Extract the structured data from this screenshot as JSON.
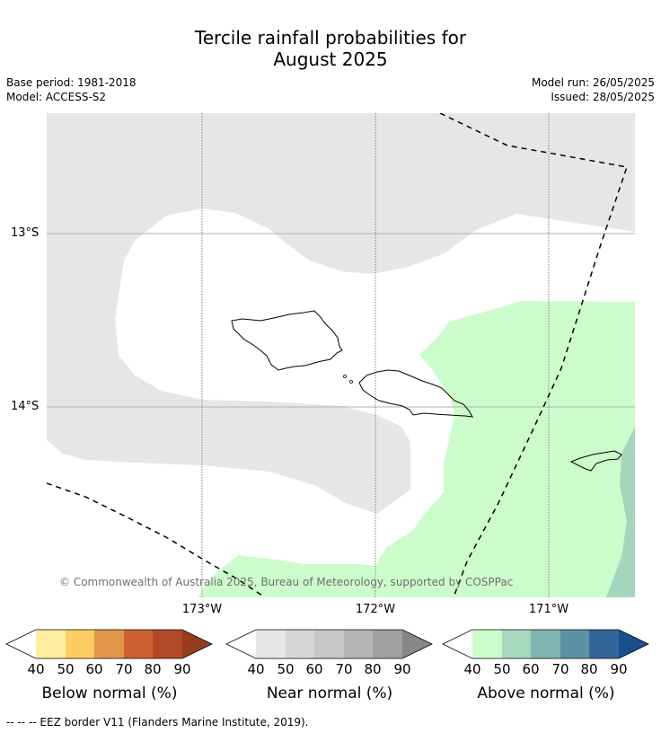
{
  "title": {
    "line1": "Tercile rainfall probabilities for",
    "line2": "August 2025"
  },
  "meta": {
    "base_period": "Base period: 1981-2018",
    "model": "Model: ACCESS-S2",
    "model_run": "Model run: 26/05/2025",
    "issued": "Issued: 28/05/2025"
  },
  "map": {
    "lat_labels": [
      "13°S",
      "14°S"
    ],
    "lon_labels": [
      "173°W",
      "172°W",
      "171°W"
    ],
    "copyright": "© Commonwealth of Australia 2025, Bureau of Meteorology, supported by COSPPac",
    "colors": {
      "near_normal_40": "#e6e6e6",
      "above_normal_40": "#ccfccc",
      "above_normal_50": "#a3d6bd",
      "no_signal": "#ffffff"
    }
  },
  "legend": {
    "ticks": [
      "40",
      "50",
      "60",
      "70",
      "80",
      "90"
    ],
    "below": {
      "label": "Below normal (%)",
      "colors": [
        "#ffffff",
        "#ffeda0",
        "#fecd62",
        "#e2964a",
        "#cd6131",
        "#b24a27",
        "#973c1f"
      ]
    },
    "near": {
      "label": "Near normal (%)",
      "colors": [
        "#ffffff",
        "#e6e6e6",
        "#d6d6d6",
        "#c8c8c8",
        "#b4b4b4",
        "#a0a0a0",
        "#878787"
      ]
    },
    "above": {
      "label": "Above normal (%)",
      "colors": [
        "#ffffff",
        "#ccfccc",
        "#a5d8bd",
        "#7fb4b2",
        "#5a92a4",
        "#336699",
        "#1a4e8c"
      ]
    }
  },
  "footnote": "--  --  -- EEZ border V11 (Flanders Marine Institute, 2019)."
}
